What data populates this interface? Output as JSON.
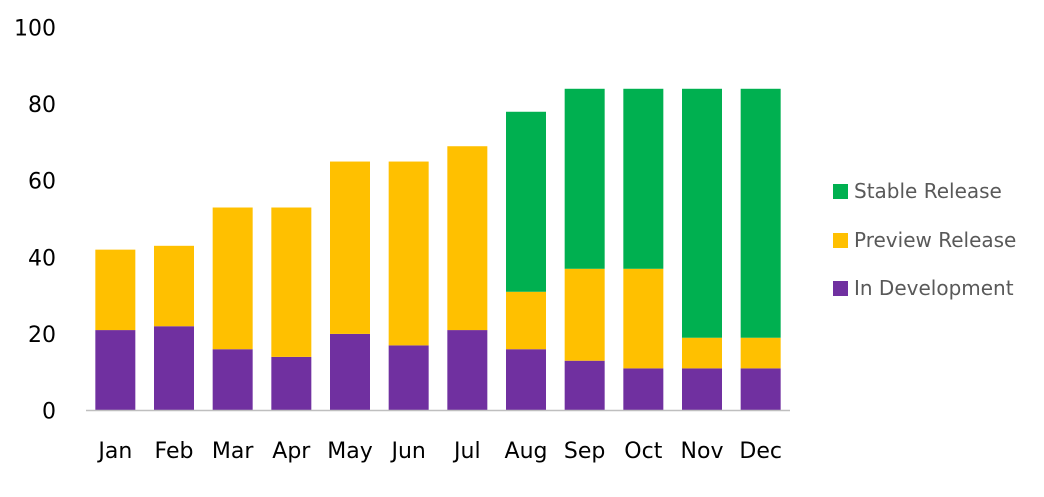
{
  "chart_data": {
    "type": "bar",
    "stacked": true,
    "categories": [
      "Jan",
      "Feb",
      "Mar",
      "Apr",
      "May",
      "Jun",
      "Jul",
      "Aug",
      "Sep",
      "Oct",
      "Nov",
      "Dec"
    ],
    "series": [
      {
        "name": "In Development",
        "color": "#7030A0",
        "values": [
          21,
          22,
          16,
          14,
          20,
          17,
          21,
          16,
          13,
          11,
          11,
          11
        ]
      },
      {
        "name": "Preview Release",
        "color": "#FFC000",
        "values": [
          21,
          21,
          37,
          39,
          45,
          48,
          48,
          15,
          24,
          26,
          8,
          8
        ]
      },
      {
        "name": "Stable Release",
        "color": "#00B050",
        "values": [
          0,
          0,
          0,
          0,
          0,
          0,
          0,
          47,
          47,
          47,
          65,
          65
        ]
      }
    ],
    "ylim": [
      0,
      100
    ],
    "yticks": [
      "0",
      "20",
      "40",
      "60",
      "80",
      "100"
    ],
    "grid": false,
    "legend_position": "right",
    "legend_order": [
      "Stable Release",
      "Preview Release",
      "In Development"
    ]
  }
}
